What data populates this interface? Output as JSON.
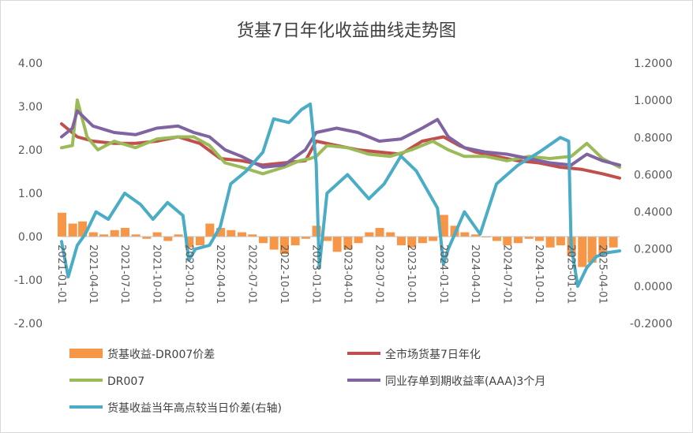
{
  "chart_data": {
    "type": "line",
    "title": "货基7日年化收益曲线走势图",
    "x_ticks": [
      "2021-01-01",
      "2021-04-01",
      "2021-07-01",
      "2021-10-01",
      "2022-01-01",
      "2022-04-01",
      "2022-07-01",
      "2022-10-01",
      "2023-01-01",
      "2023-04-01",
      "2023-07-01",
      "2023-10-01",
      "2024-01-01",
      "2024-04-01",
      "2024-07-01",
      "2024-10-01",
      "2025-01-01",
      "2025-04-01"
    ],
    "y_left": {
      "ticks": [
        "4.00",
        "3.00",
        "2.00",
        "1.00",
        "0.00",
        "-1.00",
        "-2.00"
      ],
      "range": [
        -2,
        4
      ]
    },
    "y_right": {
      "ticks": [
        "1.2000",
        "1.0000",
        "0.8000",
        "0.6000",
        "0.4000",
        "0.2000",
        "0.0000",
        "-0.2000"
      ],
      "range": [
        -0.2,
        1.2
      ]
    },
    "series": [
      {
        "name": "货基收益-DR007价差",
        "type": "bar",
        "axis": "left",
        "color": "#F79646",
        "x": [
          "2021-01-01",
          "2021-02-01",
          "2021-03-01",
          "2021-04-01",
          "2021-05-01",
          "2021-06-01",
          "2021-07-01",
          "2021-08-01",
          "2021-09-01",
          "2021-10-01",
          "2021-11-01",
          "2021-12-01",
          "2022-01-01",
          "2022-02-01",
          "2022-03-01",
          "2022-04-01",
          "2022-05-01",
          "2022-06-01",
          "2022-07-01",
          "2022-08-01",
          "2022-09-01",
          "2022-10-01",
          "2022-11-01",
          "2022-12-01",
          "2023-01-01",
          "2023-02-01",
          "2023-03-01",
          "2023-04-01",
          "2023-05-01",
          "2023-06-01",
          "2023-07-01",
          "2023-08-01",
          "2023-09-01",
          "2023-10-01",
          "2023-11-01",
          "2023-12-01",
          "2024-01-01",
          "2024-02-01",
          "2024-03-01",
          "2024-04-01",
          "2024-05-01",
          "2024-06-01",
          "2024-07-01",
          "2024-08-01",
          "2024-09-01",
          "2024-10-01",
          "2024-11-01",
          "2024-12-01",
          "2025-01-01",
          "2025-02-01",
          "2025-03-01",
          "2025-04-01",
          "2025-05-01"
        ],
        "values": [
          0.55,
          0.3,
          0.35,
          0.1,
          0.05,
          0.15,
          0.2,
          0.05,
          -0.05,
          0.1,
          -0.1,
          0.05,
          -0.25,
          -0.2,
          0.3,
          0.2,
          0.15,
          0.1,
          0.05,
          -0.15,
          -0.3,
          -0.4,
          -0.2,
          -0.05,
          0.25,
          -0.1,
          -0.35,
          -0.3,
          -0.15,
          0.1,
          0.2,
          0.1,
          -0.2,
          -0.25,
          -0.15,
          -0.1,
          0.5,
          0.25,
          0.1,
          0.05,
          0.0,
          -0.1,
          -0.2,
          -0.15,
          -0.05,
          -0.1,
          -0.25,
          -0.2,
          -0.45,
          -0.7,
          -0.6,
          -0.4,
          -0.25
        ]
      },
      {
        "name": "全市场货基7日年化",
        "type": "line",
        "axis": "left",
        "color": "#C0504D",
        "x": [
          "2021-01-01",
          "2021-02-15",
          "2021-04-01",
          "2021-06-01",
          "2021-08-01",
          "2021-10-01",
          "2021-12-01",
          "2022-02-01",
          "2022-04-01",
          "2022-06-01",
          "2022-08-01",
          "2022-10-01",
          "2022-12-01",
          "2023-01-01",
          "2023-03-01",
          "2023-05-01",
          "2023-07-01",
          "2023-09-01",
          "2023-11-01",
          "2024-01-01",
          "2024-02-15",
          "2024-04-01",
          "2024-06-01",
          "2024-08-01",
          "2024-10-01",
          "2024-12-01",
          "2025-02-01",
          "2025-04-01",
          "2025-05-20"
        ],
        "values": [
          2.6,
          2.3,
          2.2,
          2.15,
          2.15,
          2.2,
          2.3,
          2.15,
          1.8,
          1.75,
          1.65,
          1.7,
          1.75,
          2.2,
          2.1,
          2.0,
          1.95,
          1.9,
          2.2,
          2.3,
          2.1,
          1.95,
          1.85,
          1.75,
          1.7,
          1.6,
          1.55,
          1.45,
          1.35
        ]
      },
      {
        "name": "DR007",
        "type": "line",
        "axis": "left",
        "color": "#9BBB59",
        "x": [
          "2021-01-01",
          "2021-02-01",
          "2021-02-15",
          "2021-03-15",
          "2021-04-15",
          "2021-06-01",
          "2021-08-01",
          "2021-10-01",
          "2021-12-01",
          "2022-01-15",
          "2022-03-01",
          "2022-04-15",
          "2022-06-01",
          "2022-08-01",
          "2022-10-01",
          "2022-11-15",
          "2022-12-15",
          "2023-01-01",
          "2023-02-01",
          "2023-04-01",
          "2023-06-01",
          "2023-08-01",
          "2023-10-01",
          "2023-12-01",
          "2024-01-15",
          "2024-03-01",
          "2024-05-01",
          "2024-07-01",
          "2024-09-01",
          "2024-11-01",
          "2025-01-01",
          "2025-02-15",
          "2025-04-01",
          "2025-05-20"
        ],
        "values": [
          2.05,
          2.1,
          3.15,
          2.3,
          2.0,
          2.2,
          2.05,
          2.25,
          2.3,
          2.3,
          2.1,
          1.7,
          1.6,
          1.45,
          1.6,
          1.75,
          1.8,
          1.85,
          2.1,
          2.05,
          1.9,
          1.85,
          2.0,
          2.2,
          2.0,
          1.85,
          1.85,
          1.75,
          1.85,
          1.8,
          1.85,
          2.15,
          1.8,
          1.6
        ]
      },
      {
        "name": "同业存单到期收益率(AAA)3个月",
        "type": "line",
        "axis": "left",
        "color": "#8064A2",
        "x": [
          "2021-01-01",
          "2021-02-01",
          "2021-02-15",
          "2021-04-01",
          "2021-06-01",
          "2021-08-01",
          "2021-10-01",
          "2021-12-01",
          "2022-01-15",
          "2022-03-01",
          "2022-04-15",
          "2022-06-01",
          "2022-08-01",
          "2022-10-01",
          "2022-12-01",
          "2023-01-01",
          "2023-03-01",
          "2023-05-01",
          "2023-07-01",
          "2023-09-01",
          "2023-11-01",
          "2023-12-15",
          "2024-01-15",
          "2024-03-01",
          "2024-05-01",
          "2024-07-01",
          "2024-09-01",
          "2024-11-01",
          "2025-01-01",
          "2025-02-15",
          "2025-04-01",
          "2025-05-20"
        ],
        "values": [
          2.3,
          2.5,
          2.9,
          2.55,
          2.4,
          2.35,
          2.5,
          2.55,
          2.4,
          2.3,
          2.0,
          1.85,
          1.6,
          1.65,
          2.0,
          2.4,
          2.5,
          2.4,
          2.2,
          2.25,
          2.5,
          2.7,
          2.3,
          2.05,
          1.95,
          1.9,
          1.8,
          1.7,
          1.65,
          1.9,
          1.75,
          1.65
        ]
      },
      {
        "name": "货基收益当年高点较当日价差(右轴)",
        "type": "line",
        "axis": "right",
        "color": "#4BACC6",
        "x": [
          "2021-01-01",
          "2021-01-20",
          "2021-02-15",
          "2021-03-10",
          "2021-04-10",
          "2021-05-15",
          "2021-07-01",
          "2021-08-15",
          "2021-09-20",
          "2021-11-01",
          "2021-12-15",
          "2022-01-01",
          "2022-01-20",
          "2022-03-01",
          "2022-04-01",
          "2022-05-01",
          "2022-06-15",
          "2022-08-01",
          "2022-09-01",
          "2022-10-15",
          "2022-11-20",
          "2022-12-15",
          "2023-01-01",
          "2023-01-10",
          "2023-02-01",
          "2023-04-01",
          "2023-06-01",
          "2023-07-15",
          "2023-09-01",
          "2023-10-15",
          "2023-12-15",
          "2024-01-01",
          "2024-01-15",
          "2024-03-01",
          "2024-04-15",
          "2024-06-01",
          "2024-08-01",
          "2024-10-01",
          "2024-12-01",
          "2024-12-25",
          "2025-01-01",
          "2025-01-20",
          "2025-02-15",
          "2025-03-15",
          "2025-04-15",
          "2025-05-20"
        ],
        "values": [
          0.24,
          0.05,
          0.22,
          0.28,
          0.4,
          0.36,
          0.5,
          0.44,
          0.36,
          0.45,
          0.38,
          0.14,
          0.2,
          0.22,
          0.32,
          0.55,
          0.62,
          0.72,
          0.9,
          0.88,
          0.95,
          0.98,
          0.66,
          0.1,
          0.5,
          0.6,
          0.47,
          0.55,
          0.7,
          0.62,
          0.42,
          0.12,
          0.2,
          0.4,
          0.28,
          0.55,
          0.65,
          0.72,
          0.8,
          0.78,
          0.22,
          0.0,
          0.1,
          0.16,
          0.18,
          0.19
        ]
      }
    ],
    "legend": {
      "placement": "bottom"
    }
  }
}
